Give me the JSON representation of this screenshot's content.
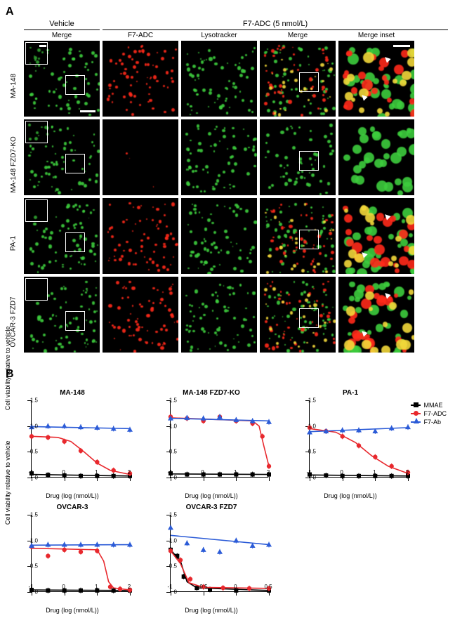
{
  "panelA": {
    "label": "A",
    "header_vehicle": "Vehicle",
    "header_treatment": "F7-ADC (5 nmol/L)",
    "columns": [
      "Merge",
      "F7-ADC",
      "Lysotracker",
      "Merge",
      "Merge inset"
    ],
    "rows": [
      {
        "label": "MA-148",
        "has_red": true,
        "inset_arrows": true
      },
      {
        "label": "MA-148 FZD7-KO",
        "has_red": false,
        "inset_arrows": false
      },
      {
        "label": "PA-1",
        "has_red": true,
        "inset_arrows": true
      },
      {
        "label": "OVCAR-3 FZD7",
        "has_red": true,
        "inset_arrows": true
      }
    ],
    "colors": {
      "green": "#3dcc3d",
      "red": "#ff2a1a",
      "yellow": "#f2d83a",
      "black": "#000000"
    }
  },
  "panelB": {
    "label": "B",
    "ylabel": "Cell viability relative to vehicle",
    "xlabel": "Drug (log (nmol/L))",
    "ylim": [
      0,
      1.5
    ],
    "yticks": [
      0,
      0.5,
      1.0,
      1.5
    ],
    "xlim": [
      -1,
      2
    ],
    "xticks_std": [
      -1,
      0,
      1,
      2
    ],
    "xticks_ov": [
      -1,
      -0.5,
      0,
      0.5
    ],
    "legend": [
      {
        "name": "MMAE",
        "color": "#000000",
        "marker": "square"
      },
      {
        "name": "F7-ADC",
        "color": "#e8282d",
        "marker": "circle"
      },
      {
        "name": "F7-Ab",
        "color": "#2b5bd7",
        "marker": "triangle"
      }
    ],
    "charts": [
      {
        "title": "MA-148",
        "xticks": "std",
        "ylabel": true,
        "series": {
          "MMAE": [
            [
              -1,
              0.08
            ],
            [
              -0.5,
              0.05
            ],
            [
              0,
              0.04
            ],
            [
              0.5,
              0.03
            ],
            [
              1,
              0.03
            ],
            [
              1.5,
              0.03
            ],
            [
              2,
              0.03
            ]
          ],
          "F7-ADC": [
            [
              -1,
              0.8
            ],
            [
              -0.5,
              0.78
            ],
            [
              0,
              0.7
            ],
            [
              0.5,
              0.52
            ],
            [
              1,
              0.3
            ],
            [
              1.5,
              0.14
            ],
            [
              2,
              0.08
            ]
          ],
          "F7-Ab": [
            [
              -1,
              0.98
            ],
            [
              -0.5,
              1.0
            ],
            [
              0,
              1.0
            ],
            [
              0.5,
              0.98
            ],
            [
              1,
              0.97
            ],
            [
              1.5,
              0.95
            ],
            [
              2,
              0.93
            ]
          ]
        },
        "fit": {
          "MMAE": [
            [
              -1,
              0.06
            ],
            [
              2,
              0.03
            ]
          ],
          "F7-ADC": [
            [
              -1,
              0.8
            ],
            [
              -0.2,
              0.78
            ],
            [
              0.2,
              0.7
            ],
            [
              0.6,
              0.5
            ],
            [
              1.0,
              0.28
            ],
            [
              1.4,
              0.14
            ],
            [
              2,
              0.06
            ]
          ],
          "F7-Ab": [
            [
              -1,
              0.99
            ],
            [
              2,
              0.95
            ]
          ]
        }
      },
      {
        "title": "MA-148 FZD7-KO",
        "xticks": "std",
        "ylabel": false,
        "series": {
          "MMAE": [
            [
              -1,
              0.08
            ],
            [
              -0.5,
              0.06
            ],
            [
              0,
              0.06
            ],
            [
              0.5,
              0.06
            ],
            [
              1,
              0.06
            ],
            [
              1.5,
              0.06
            ],
            [
              2,
              0.06
            ]
          ],
          "F7-ADC": [
            [
              -1,
              1.18
            ],
            [
              -0.5,
              1.15
            ],
            [
              0,
              1.1
            ],
            [
              0.5,
              1.18
            ],
            [
              1,
              1.1
            ],
            [
              1.5,
              1.05
            ],
            [
              1.8,
              0.8
            ],
            [
              2,
              0.22
            ]
          ],
          "F7-Ab": [
            [
              -1,
              1.15
            ],
            [
              -0.5,
              1.16
            ],
            [
              0,
              1.15
            ],
            [
              0.5,
              1.18
            ],
            [
              1,
              1.12
            ],
            [
              1.5,
              1.1
            ],
            [
              2,
              1.08
            ]
          ]
        },
        "fit": {
          "MMAE": [
            [
              -1,
              0.07
            ],
            [
              2,
              0.06
            ]
          ],
          "F7-ADC": [
            [
              -1,
              1.16
            ],
            [
              1.5,
              1.1
            ],
            [
              1.7,
              1.0
            ],
            [
              1.85,
              0.6
            ],
            [
              2,
              0.22
            ]
          ],
          "F7-Ab": [
            [
              -1,
              1.15
            ],
            [
              2,
              1.1
            ]
          ]
        }
      },
      {
        "title": "PA-1",
        "xticks": "std",
        "ylabel": false,
        "series": {
          "MMAE": [
            [
              -1,
              0.06
            ],
            [
              -0.5,
              0.04
            ],
            [
              0,
              0.03
            ],
            [
              0.5,
              0.03
            ],
            [
              1,
              0.03
            ],
            [
              1.5,
              0.03
            ],
            [
              2,
              0.03
            ]
          ],
          "F7-ADC": [
            [
              -1,
              0.97
            ],
            [
              -0.5,
              0.9
            ],
            [
              0,
              0.8
            ],
            [
              0.5,
              0.62
            ],
            [
              1,
              0.4
            ],
            [
              1.5,
              0.22
            ],
            [
              2,
              0.1
            ]
          ],
          "F7-Ab": [
            [
              -1,
              0.88
            ],
            [
              -0.5,
              0.9
            ],
            [
              0,
              0.92
            ],
            [
              0.5,
              0.92
            ],
            [
              1,
              0.9
            ],
            [
              1.5,
              0.96
            ],
            [
              2,
              0.98
            ]
          ]
        },
        "fit": {
          "MMAE": [
            [
              -1,
              0.05
            ],
            [
              2,
              0.03
            ]
          ],
          "F7-ADC": [
            [
              -1,
              0.95
            ],
            [
              -0.2,
              0.88
            ],
            [
              0.4,
              0.68
            ],
            [
              0.9,
              0.42
            ],
            [
              1.4,
              0.22
            ],
            [
              2,
              0.08
            ]
          ],
          "F7-Ab": [
            [
              -1,
              0.89
            ],
            [
              2,
              0.97
            ]
          ]
        }
      },
      {
        "title": "OVCAR-3",
        "xticks": "std",
        "ylabel": true,
        "series": {
          "MMAE": [
            [
              -1,
              0.04
            ],
            [
              -0.5,
              0.03
            ],
            [
              0,
              0.03
            ],
            [
              0.5,
              0.03
            ],
            [
              1,
              0.03
            ],
            [
              1.5,
              0.03
            ],
            [
              2,
              0.03
            ]
          ],
          "F7-ADC": [
            [
              -1,
              0.88
            ],
            [
              -0.5,
              0.7
            ],
            [
              0,
              0.82
            ],
            [
              0.5,
              0.78
            ],
            [
              1,
              0.8
            ],
            [
              1.4,
              0.1
            ],
            [
              1.7,
              0.06
            ],
            [
              2,
              0.04
            ]
          ],
          "F7-Ab": [
            [
              -1,
              0.9
            ],
            [
              -0.5,
              0.92
            ],
            [
              0,
              0.92
            ],
            [
              0.5,
              0.92
            ],
            [
              1,
              0.92
            ],
            [
              1.5,
              0.92
            ],
            [
              2,
              0.92
            ]
          ]
        },
        "fit": {
          "MMAE": [
            [
              -1,
              0.04
            ],
            [
              2,
              0.03
            ]
          ],
          "F7-ADC": [
            [
              -1,
              0.85
            ],
            [
              1.0,
              0.82
            ],
            [
              1.2,
              0.6
            ],
            [
              1.35,
              0.2
            ],
            [
              1.5,
              0.08
            ],
            [
              2,
              0.04
            ]
          ],
          "F7-Ab": [
            [
              -1,
              0.91
            ],
            [
              2,
              0.92
            ]
          ]
        }
      },
      {
        "title": "OVCAR-3 FZD7",
        "xticks": "ov",
        "ylabel": false,
        "series": {
          "MMAE": [
            [
              -1,
              0.82
            ],
            [
              -0.9,
              0.7
            ],
            [
              -0.8,
              0.3
            ],
            [
              -0.6,
              0.08
            ],
            [
              -0.4,
              0.05
            ],
            [
              0,
              0.03
            ],
            [
              0.5,
              0.03
            ]
          ],
          "F7-ADC": [
            [
              -1,
              0.8
            ],
            [
              -0.85,
              0.62
            ],
            [
              -0.7,
              0.25
            ],
            [
              -0.5,
              0.1
            ],
            [
              -0.2,
              0.08
            ],
            [
              0.2,
              0.07
            ],
            [
              0.5,
              0.07
            ]
          ],
          "F7-Ab": [
            [
              -1,
              1.25
            ],
            [
              -0.75,
              0.95
            ],
            [
              -0.5,
              0.82
            ],
            [
              -0.25,
              0.78
            ],
            [
              0,
              1.0
            ],
            [
              0.25,
              0.9
            ],
            [
              0.5,
              0.92
            ]
          ]
        },
        "fit": {
          "MMAE": [
            [
              -1,
              0.82
            ],
            [
              -0.85,
              0.6
            ],
            [
              -0.75,
              0.2
            ],
            [
              -0.6,
              0.08
            ],
            [
              0.5,
              0.03
            ]
          ],
          "F7-ADC": [
            [
              -1,
              0.8
            ],
            [
              -0.85,
              0.55
            ],
            [
              -0.72,
              0.18
            ],
            [
              -0.5,
              0.09
            ],
            [
              0.5,
              0.07
            ]
          ],
          "F7-Ab": [
            [
              -1,
              1.1
            ],
            [
              0.5,
              0.92
            ]
          ]
        }
      }
    ]
  }
}
